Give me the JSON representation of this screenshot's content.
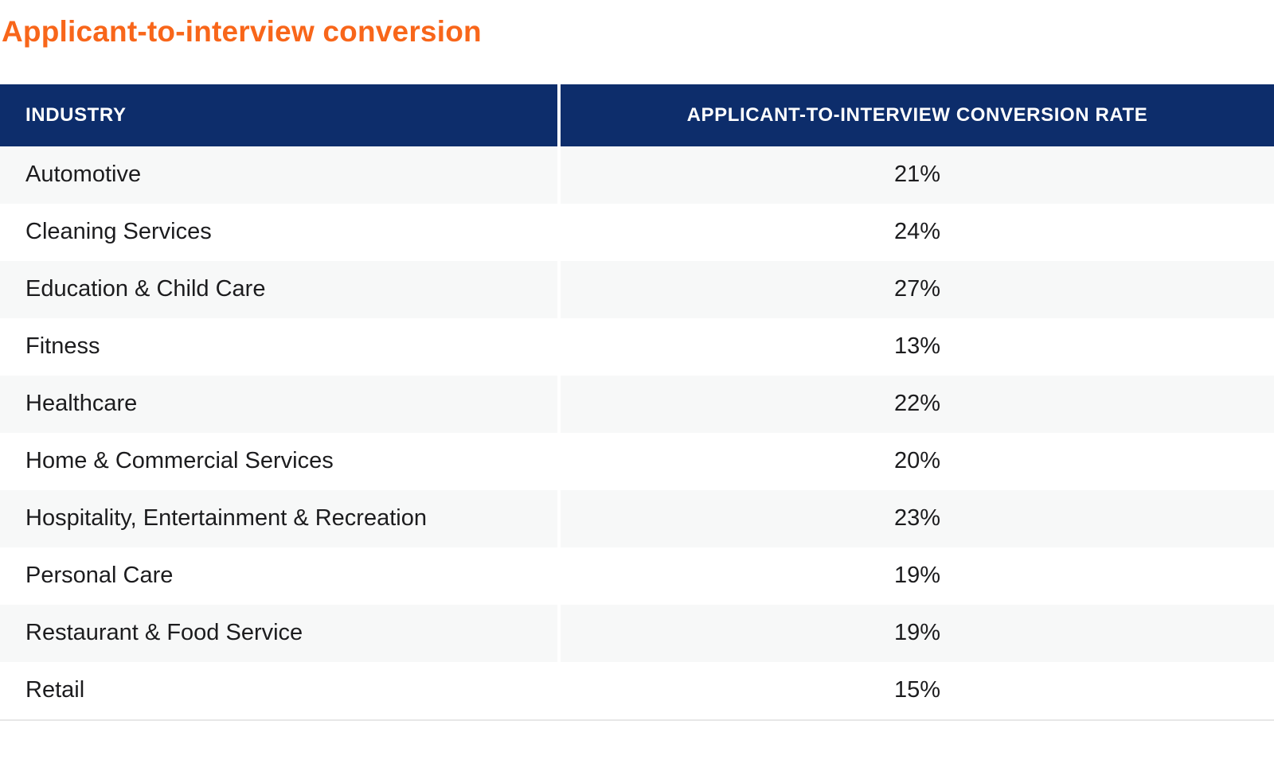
{
  "page": {
    "title": "Applicant-to-interview conversion"
  },
  "colors": {
    "title_orange": "#F8661A",
    "header_navy": "#0D2D6B",
    "header_text": "#FFFFFF",
    "row_stripe_gray": "#F7F8F8",
    "body_text": "#1C1C1E",
    "table_bottom_border": "#E7E7E7"
  },
  "chart_data": {
    "type": "table",
    "title": "Applicant-to-interview conversion",
    "columns": [
      "INDUSTRY",
      "APPLICANT-TO-INTERVIEW CONVERSION RATE"
    ],
    "rows": [
      {
        "industry": "Automotive",
        "rate": "21%"
      },
      {
        "industry": "Cleaning Services",
        "rate": "24%"
      },
      {
        "industry": "Education & Child Care",
        "rate": "27%"
      },
      {
        "industry": "Fitness",
        "rate": "13%"
      },
      {
        "industry": "Healthcare",
        "rate": "22%"
      },
      {
        "industry": "Home & Commercial Services",
        "rate": "20%"
      },
      {
        "industry": "Hospitality, Entertainment & Recreation",
        "rate": "23%"
      },
      {
        "industry": "Personal Care",
        "rate": "19%"
      },
      {
        "industry": "Restaurant & Food Service",
        "rate": "19%"
      },
      {
        "industry": "Retail",
        "rate": "15%"
      }
    ]
  }
}
